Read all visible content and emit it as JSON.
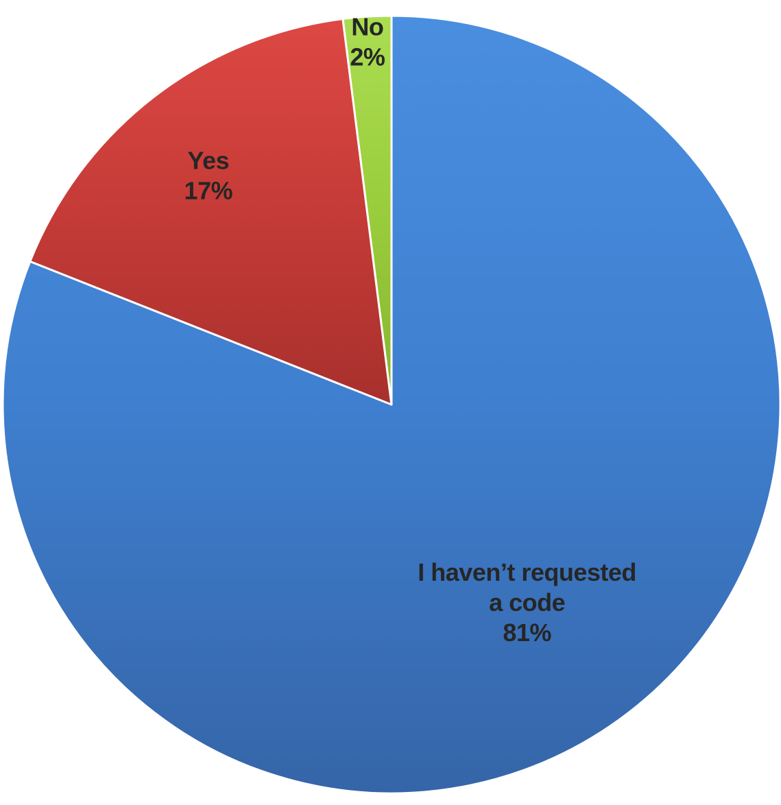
{
  "chart_data": {
    "type": "pie",
    "title": "",
    "slices": [
      {
        "label": "I haven’t requested a code",
        "label_lines": [
          "I haven’t requested",
          "a code"
        ],
        "value": 81,
        "value_label": "81%",
        "color": "#3f7fcf",
        "color_light": "#4a8ee0",
        "color_dark": "#3565a8"
      },
      {
        "label": "Yes",
        "label_lines": [
          "Yes"
        ],
        "value": 17,
        "value_label": "17%",
        "color": "#c53b37",
        "color_light": "#dd4844",
        "color_dark": "#a8302d"
      },
      {
        "label": "No",
        "label_lines": [
          "No"
        ],
        "value": 2,
        "value_label": "2%",
        "color": "#9acd3c",
        "color_light": "#abdd52",
        "color_dark": "#86b431"
      }
    ],
    "start_angle_deg": 0,
    "direction": "clockwise",
    "legend": "none",
    "data_labels": "category and percentage, inside slices"
  }
}
